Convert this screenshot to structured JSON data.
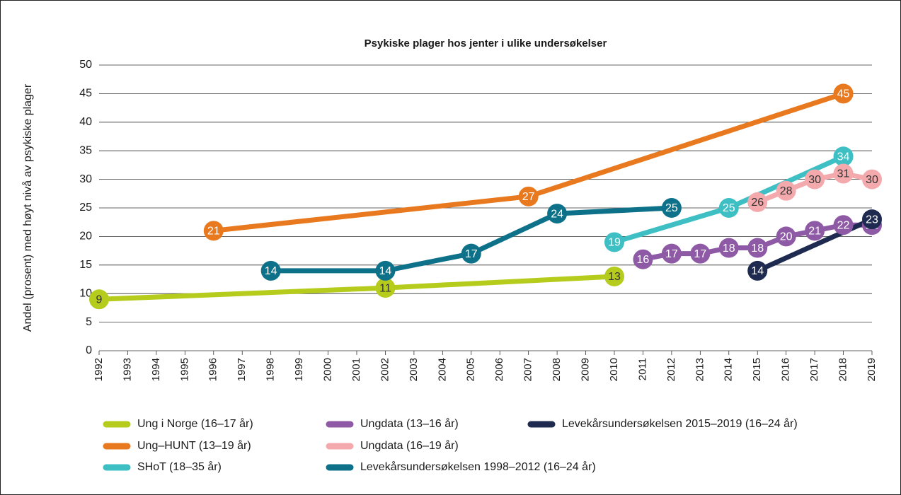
{
  "chart_data": {
    "type": "line",
    "title": "Psykiske plager hos jenter i ulike undersøkelser",
    "y_label": "Andel (prosent) med høyt nivå av psykiske plager",
    "xlim": [
      1992,
      2019
    ],
    "xticks": [
      1992,
      1993,
      1994,
      1995,
      1996,
      1997,
      1998,
      1999,
      2000,
      2001,
      2002,
      2003,
      2004,
      2005,
      2006,
      2007,
      2008,
      2009,
      2010,
      2011,
      2012,
      2013,
      2014,
      2015,
      2016,
      2017,
      2018,
      2019
    ],
    "ylim": [
      0,
      50
    ],
    "yticks": [
      0,
      5,
      10,
      15,
      20,
      25,
      30,
      35,
      40,
      45,
      50
    ],
    "grid": true,
    "legend": "bottom",
    "series": [
      {
        "name": "Ung i Norge (16–17 år)",
        "color": "#b6cc1c",
        "x": [
          1992,
          2002,
          2010
        ],
        "values": [
          9,
          11,
          13
        ]
      },
      {
        "name": "Ung–HUNT (13–19 år)",
        "color": "#e8791e",
        "x": [
          1996,
          2007,
          2018
        ],
        "values": [
          21,
          27,
          45
        ]
      },
      {
        "name": "SHoT (18–35 år)",
        "color": "#3dbfc4",
        "x": [
          2010,
          2014,
          2018
        ],
        "values": [
          19,
          25,
          34
        ]
      },
      {
        "name": "Ungdata (13–16 år)",
        "color": "#8e5aa5",
        "x": [
          2011,
          2012,
          2013,
          2014,
          2015,
          2016,
          2017,
          2018,
          2019
        ],
        "values": [
          16,
          17,
          17,
          18,
          18,
          20,
          21,
          22,
          22
        ]
      },
      {
        "name": "Ungdata (16–19 år)",
        "color": "#f4a9ac",
        "x": [
          2015,
          2016,
          2017,
          2018,
          2019
        ],
        "values": [
          26,
          28,
          30,
          31,
          30
        ]
      },
      {
        "name": "Levekårsundersøkelsen 1998–2012 (16–24 år)",
        "color": "#0d7189",
        "x": [
          1998,
          2002,
          2005,
          2008,
          2012
        ],
        "values": [
          14,
          14,
          17,
          24,
          25
        ]
      },
      {
        "name": "Levekårsundersøkelsen 2015–2019 (16–24 år)",
        "color": "#1e2a50",
        "x": [
          2015,
          2019
        ],
        "values": [
          14,
          23
        ]
      }
    ]
  }
}
